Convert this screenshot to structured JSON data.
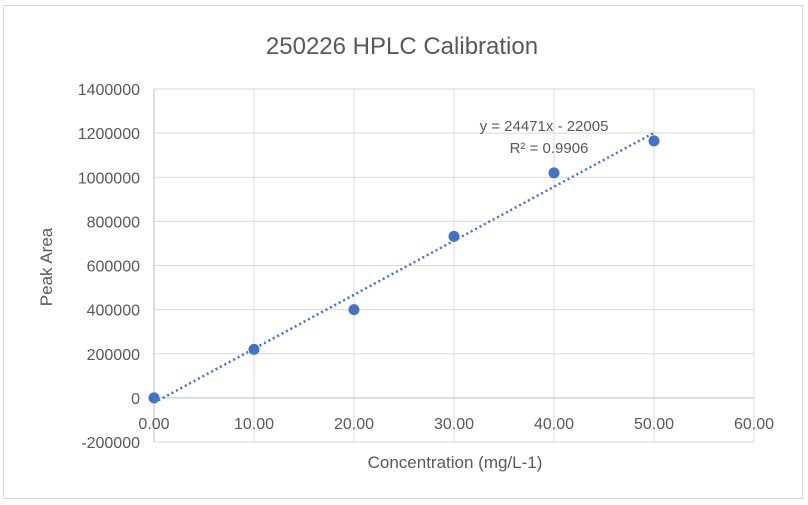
{
  "chart_data": {
    "type": "scatter",
    "title": "250226 HPLC Calibration",
    "xlabel": "Concentration (mg/L-1)",
    "ylabel": "Peak Area",
    "xlim": [
      0,
      60
    ],
    "ylim": [
      -200000,
      1400000
    ],
    "x_ticks": [
      0,
      10,
      20,
      30,
      40,
      50,
      60
    ],
    "x_tick_labels": [
      "0.00",
      "10.00",
      "20.00",
      "30.00",
      "40.00",
      "50.00",
      "60.00"
    ],
    "y_ticks": [
      -200000,
      0,
      200000,
      400000,
      600000,
      800000,
      1000000,
      1200000,
      1400000
    ],
    "y_tick_labels": [
      "-200000",
      "0",
      "200000",
      "400000",
      "600000",
      "800000",
      "1000000",
      "1200000",
      "1400000"
    ],
    "grid": true,
    "series": [
      {
        "x": [
          0,
          10,
          20,
          30,
          40,
          50
        ],
        "y": [
          0,
          220000,
          400000,
          732000,
          1020000,
          1165000
        ],
        "color": "#4472c4",
        "trendline": {
          "type": "linear",
          "slope": 24471,
          "intercept": -22005,
          "x_range": [
            0,
            50
          ],
          "style": "dotted",
          "equation_label": "y = 24471x - 22005",
          "r2_label": "R² = 0.9906"
        }
      }
    ]
  }
}
